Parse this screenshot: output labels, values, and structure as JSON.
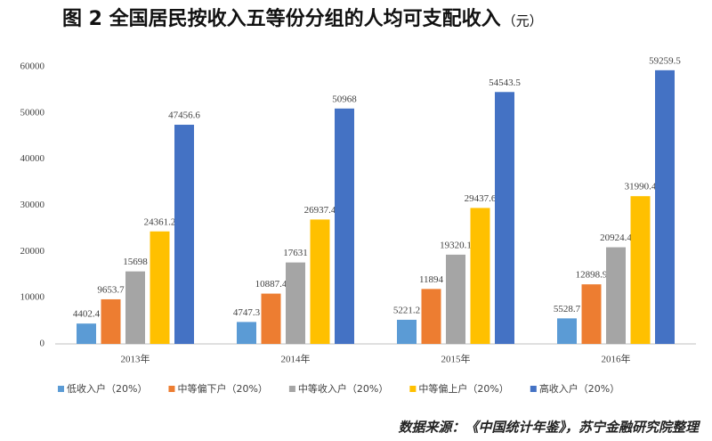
{
  "chart_data": {
    "type": "bar",
    "title": "图 2  全国居民按收入五等份分组的人均可支配收入",
    "title_unit": "（元）",
    "source": "数据来源：《中国统计年鉴》，苏宁金融研究院整理",
    "categories": [
      "2013年",
      "2014年",
      "2015年",
      "2016年"
    ],
    "series": [
      {
        "name": "低收入户（20%）",
        "color": "#5b9bd5",
        "values": [
          4402.4,
          4747.3,
          5221.2,
          5528.7
        ]
      },
      {
        "name": "中等偏下户（20%）",
        "color": "#ed7d31",
        "values": [
          9653.7,
          10887.4,
          11894,
          12898.9
        ]
      },
      {
        "name": "中等收入户（20%）",
        "color": "#a5a5a5",
        "values": [
          15698,
          17631,
          19320.1,
          20924.4
        ]
      },
      {
        "name": "中等偏上户（20%）",
        "color": "#ffc000",
        "values": [
          24361.2,
          26937.4,
          29437.6,
          31990.4
        ]
      },
      {
        "name": "高收入户（20%）",
        "color": "#4472c4",
        "values": [
          47456.6,
          50968,
          54543.5,
          59259.5
        ]
      }
    ],
    "ylim": [
      0,
      60000
    ],
    "yticks": [
      0,
      10000,
      20000,
      30000,
      40000,
      50000,
      60000
    ],
    "grid": false,
    "legend": "bottom"
  }
}
